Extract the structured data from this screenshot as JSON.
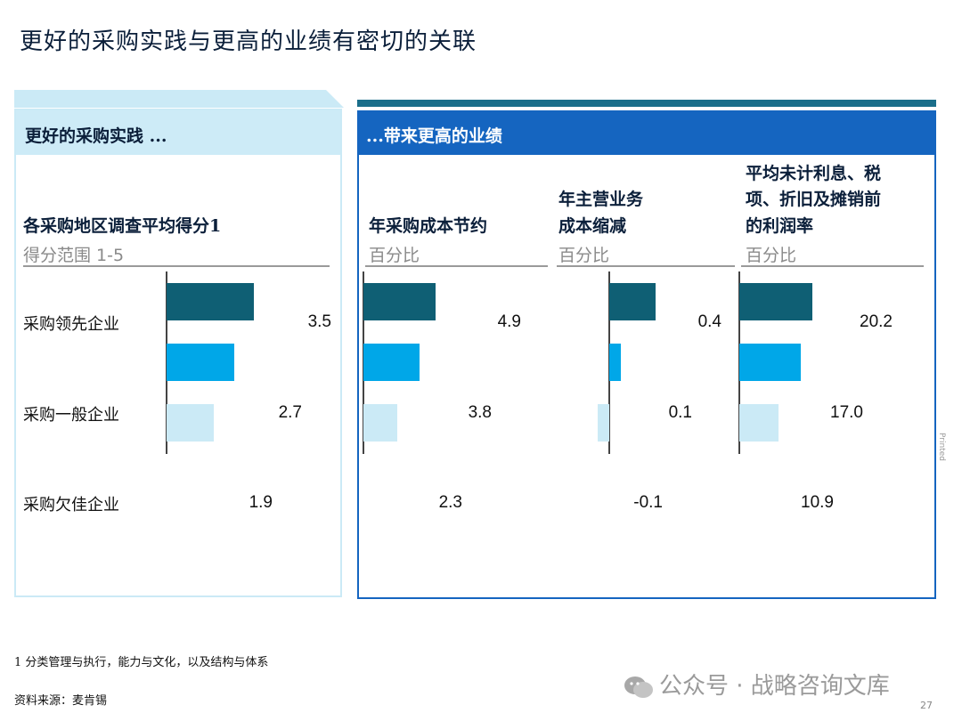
{
  "title": "更好的采购实践与更高的业绩有密切的关联",
  "left_header": "更好的采购实践 ...",
  "right_header": "...带来更高的业绩",
  "rows": [
    "采购领先企业",
    "采购一般企业",
    "采购欠佳企业"
  ],
  "colors": {
    "leader": "#0f5f74",
    "average": "#00a7e8",
    "laggard": "#cbeaf6"
  },
  "chart_data": [
    {
      "type": "bar",
      "title": "各采购地区调查平均得分1",
      "unit": "得分范围 1-5",
      "categories": [
        "采购领先企业",
        "采购一般企业",
        "采购欠佳企业"
      ],
      "values": [
        3.5,
        2.7,
        1.9
      ],
      "labels": [
        "3.5",
        "2.7",
        "1.9"
      ],
      "xlim": [
        0,
        5
      ]
    },
    {
      "type": "bar",
      "title": "年采购成本节约",
      "unit": "百分比",
      "categories": [
        "采购领先企业",
        "采购一般企业",
        "采购欠佳企业"
      ],
      "values": [
        4.9,
        3.8,
        2.3
      ],
      "labels": [
        "4.9",
        "3.8",
        "2.3"
      ],
      "xlim": [
        0,
        7
      ]
    },
    {
      "type": "bar",
      "title": "年主营业务成本缩减",
      "unit": "百分比",
      "categories": [
        "采购领先企业",
        "采购一般企业",
        "采购欠佳企业"
      ],
      "values": [
        0.4,
        0.1,
        -0.1
      ],
      "labels": [
        "0.4",
        "0.1",
        "-0.1"
      ],
      "xlim": [
        -0.4,
        0.4
      ]
    },
    {
      "type": "bar",
      "title": "平均未计利息、税项、折旧及摊销前的利润率",
      "unit": "百分比",
      "categories": [
        "采购领先企业",
        "采购一般企业",
        "采购欠佳企业"
      ],
      "values": [
        20.2,
        17.0,
        10.9
      ],
      "labels": [
        "20.2",
        "17.0",
        "10.9"
      ],
      "xlim": [
        0,
        28
      ]
    }
  ],
  "chart_headers": [
    {
      "lines": [
        "各采购地区调查平均得分1"
      ],
      "sub": "得分范围 1-5"
    },
    {
      "lines": [
        "年采购成本节约"
      ],
      "sub": "百分比"
    },
    {
      "lines": [
        "年主营业务",
        "成本缩减"
      ],
      "sub": "百分比"
    },
    {
      "lines": [
        "平均未计利息、税",
        "项、折旧及摊销前",
        "的利润率"
      ],
      "sub": "百分比"
    }
  ],
  "footnote": "1 分类管理与执行，能力与文化，以及结构与体系",
  "source": "资料来源：麦肯锡",
  "watermark": "公众号 · 战略咨询文库",
  "printed": "Printed",
  "page_number": "27"
}
